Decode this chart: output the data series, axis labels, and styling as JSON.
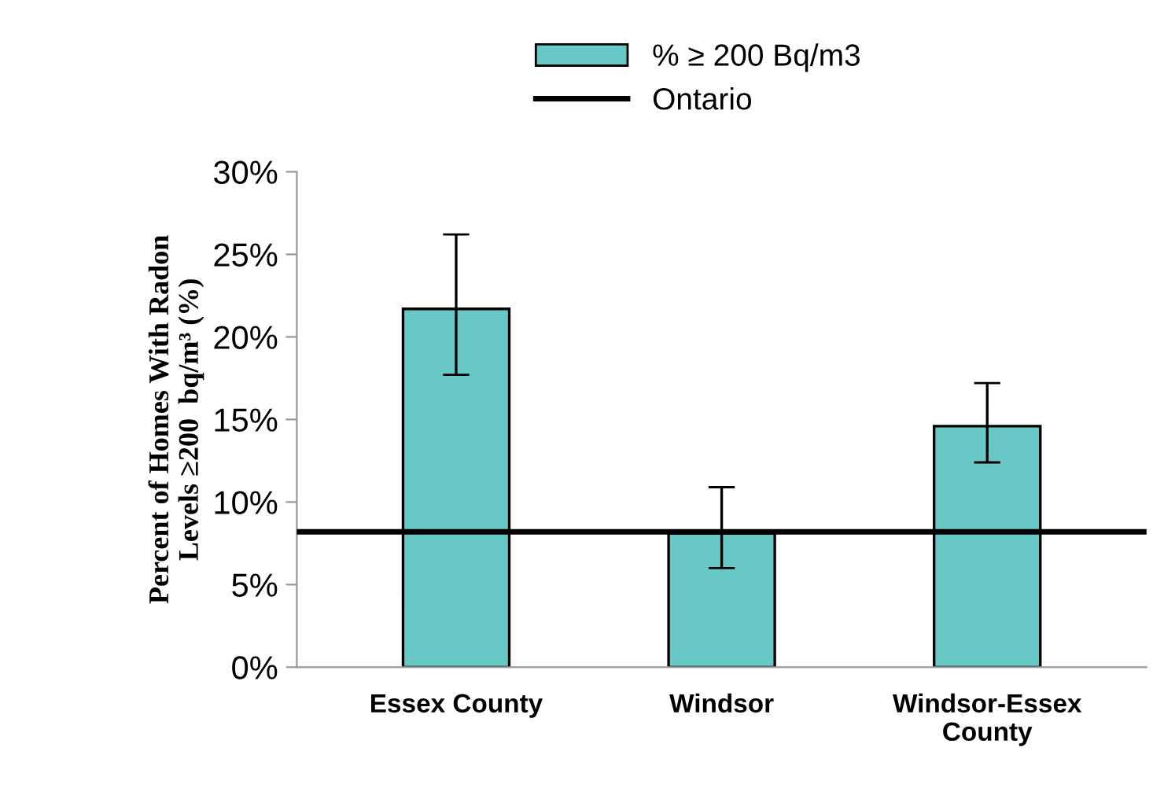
{
  "chart_data": {
    "type": "bar",
    "categories": [
      "Essex County",
      "Windsor",
      "Windsor-Essex\nCounty"
    ],
    "series": [
      {
        "name": "% ≥ 200 Bq/m3",
        "color": "#68c8c6",
        "values": [
          21.7,
          8.1,
          14.6
        ],
        "errors": [
          [
            17.7,
            26.2
          ],
          [
            6.0,
            10.9
          ],
          [
            12.4,
            17.2
          ]
        ]
      }
    ],
    "ref_lines": [
      {
        "axis": "y",
        "value": 8.2,
        "label": "Ontario",
        "color": "#000000",
        "line_style": "solid"
      }
    ],
    "ylabel": "Percent of Homes With Radon\nLevels ≥200  bq/m³ (%)",
    "ylim": [
      0,
      30
    ],
    "yticks": [
      {
        "value": 0,
        "label": "0%"
      },
      {
        "value": 5,
        "label": "5%"
      },
      {
        "value": 10,
        "label": "10%"
      },
      {
        "value": 15,
        "label": "15%"
      },
      {
        "value": 20,
        "label": "20%"
      },
      {
        "value": 25,
        "label": "25%"
      },
      {
        "value": 30,
        "label": "30%"
      }
    ],
    "grid": false,
    "legend": "top"
  }
}
